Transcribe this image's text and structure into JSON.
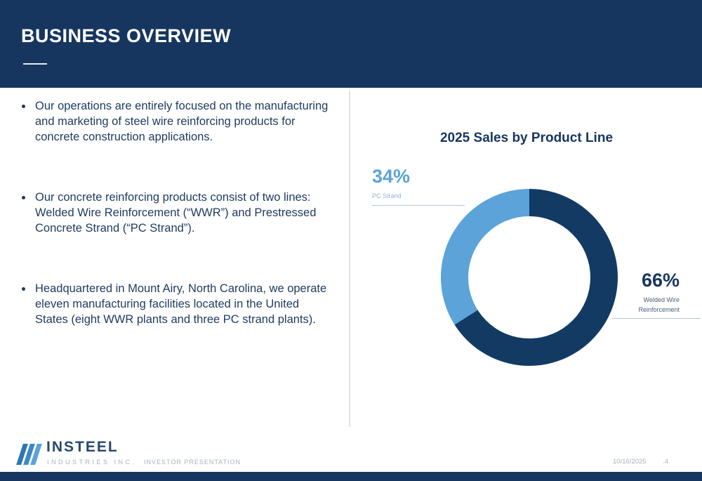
{
  "slide": {
    "title": "BUSINESS OVERVIEW",
    "bullets": [
      "Our operations are entirely focused on the manufacturing and marketing of steel wire reinforcing products for concrete construction applications.",
      "Our concrete reinforcing products consist of two lines: Welded Wire Reinforcement (“WWR”) and Prestressed Concrete Strand (“PC Strand”).",
      "Headquartered in Mount Airy, North Carolina, we operate eleven manufacturing facilities located in the United States (eight WWR plants and three PC strand plants)."
    ]
  },
  "chart_data": {
    "type": "pie",
    "subtype": "donut",
    "title": "2025 Sales by Product Line",
    "legend_position": "callouts",
    "slices": [
      {
        "label": "Welded Wire Reinforcement",
        "value": 66,
        "data_label": "66%",
        "color": "#123A63"
      },
      {
        "label": "PC Strand",
        "value": 34,
        "data_label": "34%",
        "color": "#5BA3D9"
      }
    ]
  },
  "footer": {
    "logo_primary": "INSTEEL",
    "logo_secondary": "INDUSTRIES INC.",
    "tagline": "INVESTOR PRESENTATION",
    "date": "10/16/2025",
    "page": ".4"
  },
  "colors": {
    "navy": "#16365F",
    "light_blue": "#5BA3D9",
    "text": "#1E3A5F",
    "muted_gray": "#A8B0B8",
    "divider": "#DCE2E8",
    "callout_line": "#AFC7DA"
  }
}
